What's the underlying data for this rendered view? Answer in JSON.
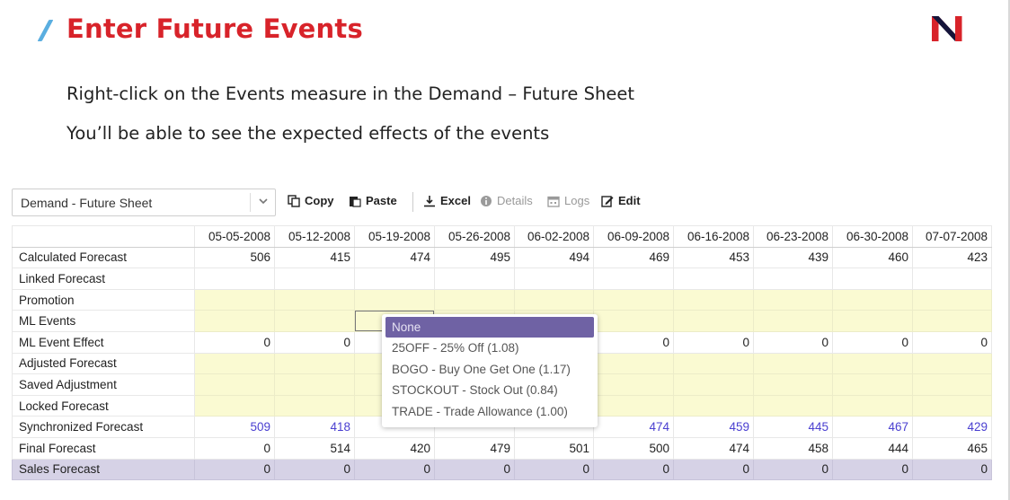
{
  "slide": {
    "title": "Enter Future Events",
    "subtitle_lines": [
      "Right-click on the Events measure in the Demand – Future Sheet",
      "You’ll be able to see the expected effects of the events"
    ],
    "brand_color": "#d8232a",
    "accent_color": "#5aaee0",
    "logo_icon": "n-logo-icon"
  },
  "toolbar": {
    "sheet_select_value": "Demand - Future Sheet",
    "copy_label": "Copy",
    "paste_label": "Paste",
    "excel_label": "Excel",
    "details_label": "Details",
    "logs_label": "Logs",
    "edit_label": "Edit"
  },
  "grid": {
    "dates": [
      "05-05-2008",
      "05-12-2008",
      "05-19-2008",
      "05-26-2008",
      "06-02-2008",
      "06-09-2008",
      "06-16-2008",
      "06-23-2008",
      "06-30-2008",
      "07-07-2008"
    ],
    "rows": [
      {
        "label": "Calculated Forecast",
        "values": [
          "506",
          "415",
          "474",
          "495",
          "494",
          "469",
          "453",
          "439",
          "460",
          "423"
        ]
      },
      {
        "label": "Linked Forecast",
        "values": [
          "",
          "",
          "",
          "",
          "",
          "",
          "",
          "",
          "",
          ""
        ]
      },
      {
        "label": "Promotion",
        "values": [
          "",
          "",
          "",
          "",
          "",
          "",
          "",
          "",
          "",
          ""
        ]
      },
      {
        "label": "ML Events",
        "values": [
          "",
          "",
          "",
          "",
          "",
          "",
          "",
          "",
          "",
          ""
        ]
      },
      {
        "label": "ML Event Effect",
        "values": [
          "0",
          "0",
          "",
          "",
          "",
          "0",
          "0",
          "0",
          "0",
          "0"
        ]
      },
      {
        "label": "Adjusted Forecast",
        "values": [
          "",
          "",
          "",
          "",
          "",
          "",
          "",
          "",
          "",
          ""
        ]
      },
      {
        "label": "Saved Adjustment",
        "values": [
          "",
          "",
          "",
          "",
          "",
          "",
          "",
          "",
          "",
          ""
        ]
      },
      {
        "label": "Locked Forecast",
        "values": [
          "",
          "",
          "",
          "",
          "",
          "",
          "",
          "",
          "",
          ""
        ]
      },
      {
        "label": "Synchronized Forecast",
        "values": [
          "509",
          "418",
          "",
          "",
          "",
          "474",
          "459",
          "445",
          "467",
          "429"
        ]
      },
      {
        "label": "Final Forecast",
        "values": [
          "0",
          "514",
          "420",
          "479",
          "501",
          "500",
          "474",
          "458",
          "444",
          "465"
        ]
      },
      {
        "label": "Sales Forecast",
        "values": [
          "0",
          "0",
          "0",
          "0",
          "0",
          "0",
          "0",
          "0",
          "0",
          "0"
        ]
      }
    ]
  },
  "dropdown": {
    "options": [
      "None",
      "25OFF - 25% Off (1.08)",
      "BOGO - Buy One Get One (1.17)",
      "STOCKOUT - Stock Out (0.84)",
      "TRADE - Trade Allowance (1.00)"
    ],
    "selected": "None"
  }
}
